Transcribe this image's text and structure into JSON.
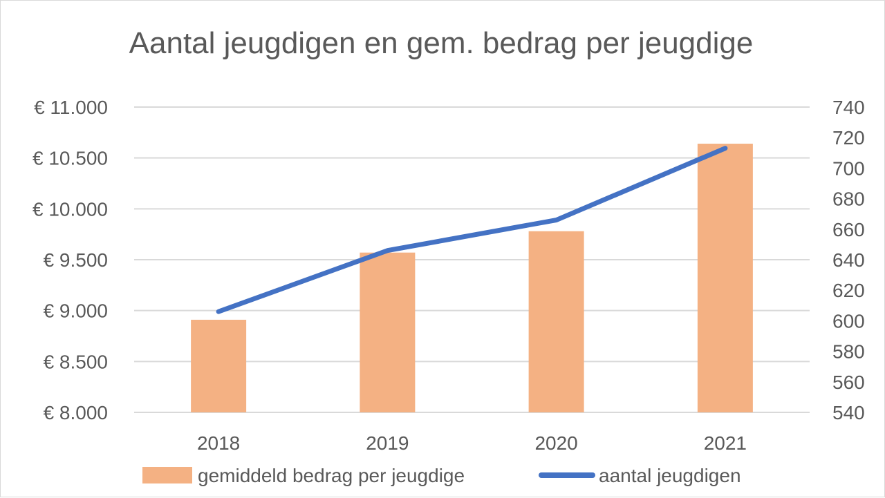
{
  "chart_data": {
    "type": "bar",
    "title": "Aantal jeugdigen en gem. bedrag per jeugdige",
    "categories": [
      "2018",
      "2019",
      "2020",
      "2021"
    ],
    "series": [
      {
        "name": "gemiddeld bedrag per jeugdige",
        "type": "bar",
        "axis": "left",
        "color": "#F4B183",
        "values": [
          8910,
          9570,
          9780,
          10640
        ]
      },
      {
        "name": "aantal jeugdigen",
        "type": "line",
        "axis": "right",
        "color": "#4472C4",
        "values": [
          606,
          646,
          666,
          713
        ]
      }
    ],
    "y_left": {
      "ylim": [
        8000,
        11000
      ],
      "ticks": [
        8000,
        8500,
        9000,
        9500,
        10000,
        10500,
        11000
      ],
      "tick_labels": [
        "€ 8.000",
        "€ 8.500",
        "€ 9.000",
        "€ 9.500",
        "€ 10.000",
        "€ 10.500",
        "€ 11.000"
      ]
    },
    "y_right": {
      "ylim": [
        540,
        740
      ],
      "ticks": [
        540,
        560,
        580,
        600,
        620,
        640,
        660,
        680,
        700,
        720,
        740
      ],
      "tick_labels": [
        "540",
        "560",
        "580",
        "600",
        "620",
        "640",
        "660",
        "680",
        "700",
        "720",
        "740"
      ]
    },
    "grid": true,
    "gridline_color": "#D9D9D9",
    "legend_position": "bottom"
  }
}
